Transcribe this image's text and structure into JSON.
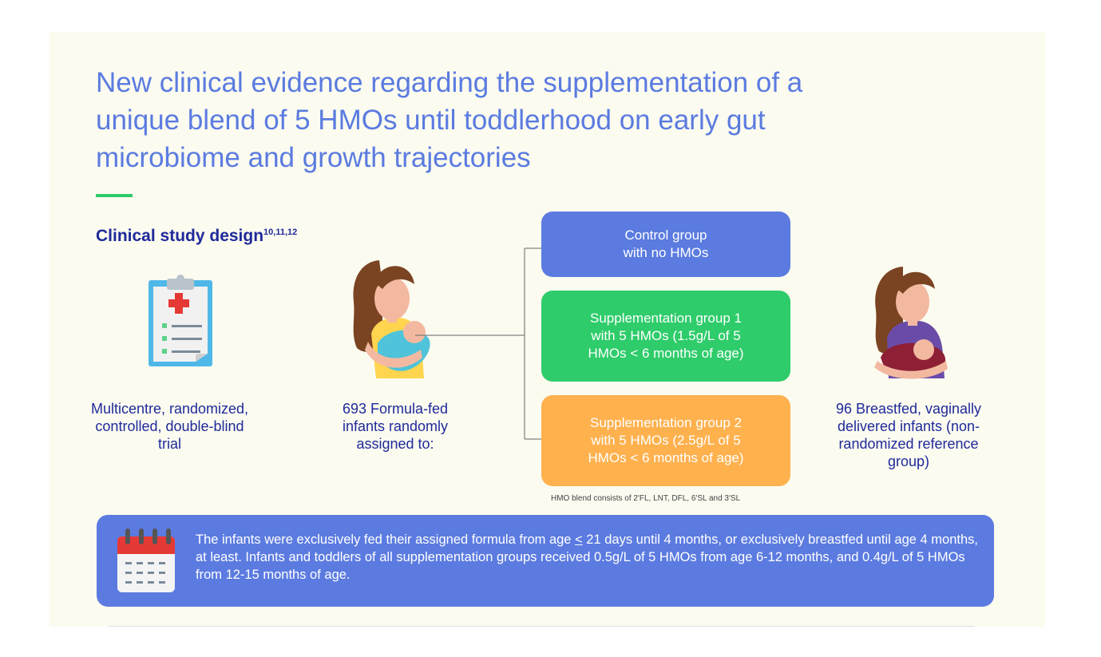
{
  "title": "New clinical evidence regarding the supplementation of a unique blend of 5 HMOs until toddlerhood on early gut microbiome and growth trajectories",
  "study_design": {
    "heading": "Clinical study design",
    "refs": "10,11,12"
  },
  "columns": {
    "trial": "Multicentre, randomized, controlled, double-blind trial",
    "formula_fed": "693 Formula-fed infants randomly assigned to:",
    "breastfed": "96 Breastfed, vaginally delivered infants (non-randomized reference group)"
  },
  "groups": [
    {
      "line1": "Control group",
      "line2": "with no HMOs",
      "line3": "",
      "color": "#5b7be0"
    },
    {
      "line1": "Supplementation group 1",
      "line2": "with 5 HMOs (1.5g/L of 5",
      "line3": "HMOs < 6 months of age)",
      "color": "#2ecc6a"
    },
    {
      "line1": "Supplementation group 2",
      "line2": "with 5 HMOs (2.5g/L of 5",
      "line3": "HMOs < 6 months of age)",
      "color": "#ffb14e"
    }
  ],
  "blend_note": "HMO blend consists of 2'FL, LNT, DFL, 6'SL and 3'SL",
  "info": {
    "part1": "The infants were exclusively fed their assigned formula from age ",
    "underlined": "<",
    "part2": " 21 days until 4 months, or exclusively breastfed until age 4 months, at least. Infants and toddlers of all supplementation groups received 0.5g/L of 5 HMOs from age 6-12 months, and 0.4g/L of 5 HMOs from 12-15 months of age."
  },
  "colors": {
    "accent_blue": "#5b7be0",
    "heading_navy": "#1f2a9a",
    "accent_green": "#2ecc6a",
    "accent_orange": "#ffb14e"
  }
}
